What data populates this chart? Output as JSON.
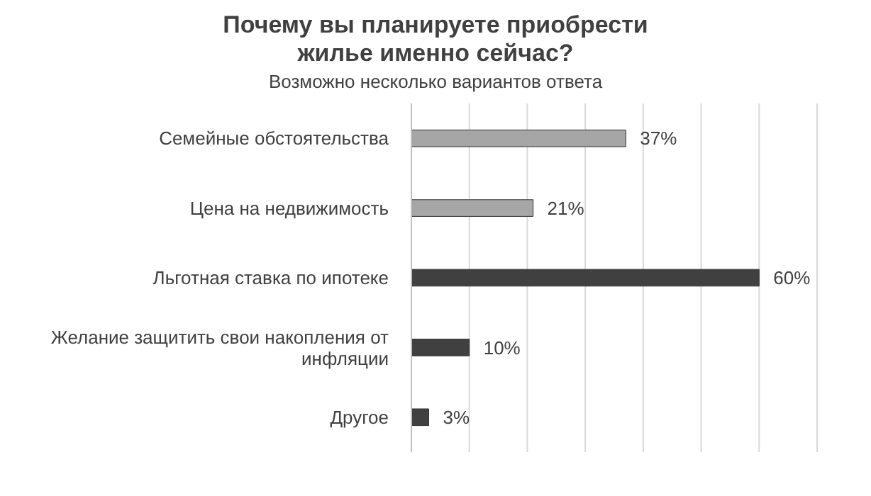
{
  "chart_data": {
    "type": "bar",
    "orientation": "horizontal",
    "title": "Почему вы планируете приобрести жилье именно сейчас?",
    "subtitle": "Возможно несколько вариантов ответа",
    "categories": [
      "Семейные обстоятельства",
      "Цена на недвижимость",
      "Льготная ставка по ипотеке",
      "Желание защитить свои накопления от инфляции",
      "Другое"
    ],
    "values": [
      37,
      21,
      60,
      10,
      3
    ],
    "colors": [
      "#a6a6a6",
      "#a6a6a6",
      "#404040",
      "#404040",
      "#404040"
    ],
    "value_labels": [
      "37%",
      "21%",
      "60%",
      "10%",
      "3%"
    ],
    "xlim": [
      0,
      70
    ],
    "xticks": [
      {
        "value": 0,
        "label": null
      },
      {
        "value": 10,
        "label": null
      },
      {
        "value": 20,
        "label": null
      },
      {
        "value": 30,
        "label": null
      },
      {
        "value": 40,
        "label": null
      },
      {
        "value": 50,
        "label": null
      },
      {
        "value": 60,
        "label": null
      },
      {
        "value": 70,
        "label": null
      }
    ],
    "grid": "x",
    "tick_labels": "y",
    "legend": false
  }
}
